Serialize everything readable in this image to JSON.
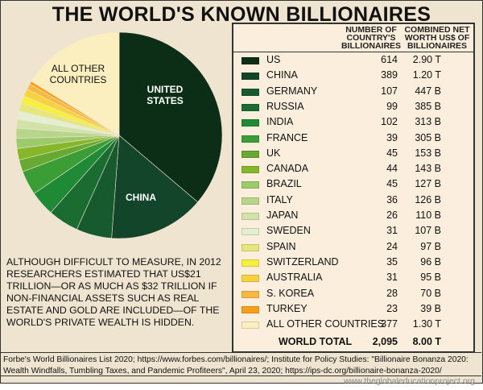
{
  "title": "THE WORLD'S KNOWN BILLIONAIRES",
  "pie_labels": {
    "us": "UNITED STATES",
    "china": "CHINA",
    "other": "ALL OTHER COUNTRIES"
  },
  "note": "ALTHOUGH DIFFICULT TO MEASURE, IN 2012 RESEARCHERS ESTIMATED THAT US$21 TRILLION—OR AS MUCH AS $32 TRILLION IF NON-FINANCIAL ASSETS SUCH AS REAL ESTATE AND GOLD ARE INCLUDED—OF THE WORLD'S PRIVATE WEALTH IS HIDDEN.",
  "table": {
    "col_count": "NUMBER OF COUNTRY'S BILLIONAIRES",
    "col_worth": "COMBINED NET WORTH US$ OF BILLIONAIRES",
    "total": {
      "label": "WORLD TOTAL",
      "count": "2,095",
      "worth": "8.00 T"
    }
  },
  "chart_data": {
    "type": "pie",
    "start": "top, clockwise",
    "unit": "US$ billions",
    "categories": [
      "US",
      "CHINA",
      "GERMANY",
      "RUSSIA",
      "INDIA",
      "FRANCE",
      "UK",
      "CANADA",
      "BRAZIL",
      "ITALY",
      "JAPAN",
      "SWEDEN",
      "SPAIN",
      "SWITZERLAND",
      "AUSTRALIA",
      "S. KOREA",
      "TURKEY",
      "ALL OTHER COUNTRIES"
    ],
    "values": [
      2900,
      1200,
      447,
      385,
      313,
      305,
      153,
      143,
      127,
      126,
      110,
      107,
      97,
      96,
      95,
      70,
      39,
      1300
    ],
    "counts": [
      "614",
      "389",
      "107",
      "99",
      "102",
      "39",
      "45",
      "44",
      "45",
      "36",
      "26",
      "31",
      "24",
      "35",
      "31",
      "28",
      "23",
      "377"
    ],
    "worth_labels": [
      "2.90 T",
      "1.20 T",
      "447 B",
      "385 B",
      "313 B",
      "305 B",
      "153 B",
      "143 B",
      "127 B",
      "126 B",
      "110 B",
      "107 B",
      "97 B",
      "96 B",
      "95 B",
      "70 B",
      "39 B",
      "1.30 T"
    ],
    "colors": [
      "#0c2e16",
      "#12452a",
      "#165a2e",
      "#1a6c31",
      "#1f8a36",
      "#3a9d36",
      "#68a933",
      "#86b72a",
      "#9ccb6c",
      "#b7d68a",
      "#d1e3a8",
      "#e4eed0",
      "#e6e67c",
      "#f7ef3e",
      "#f7d23e",
      "#f7b942",
      "#f6a01a",
      "#fbefbf"
    ]
  },
  "source": "Forbe's World Billionaires List 2020; https://www.forbes.com/billionaires/; Institute for Policy Studies: \"Billionaire Bonanza 2020: Wealth Windfalls, Tumbling Taxes, and Pandemic Profiteers\", April 23, 2020; https://ips-dc.org/billionaire-bonanza-2020/",
  "site": "www.theglobaleducationproject.org"
}
